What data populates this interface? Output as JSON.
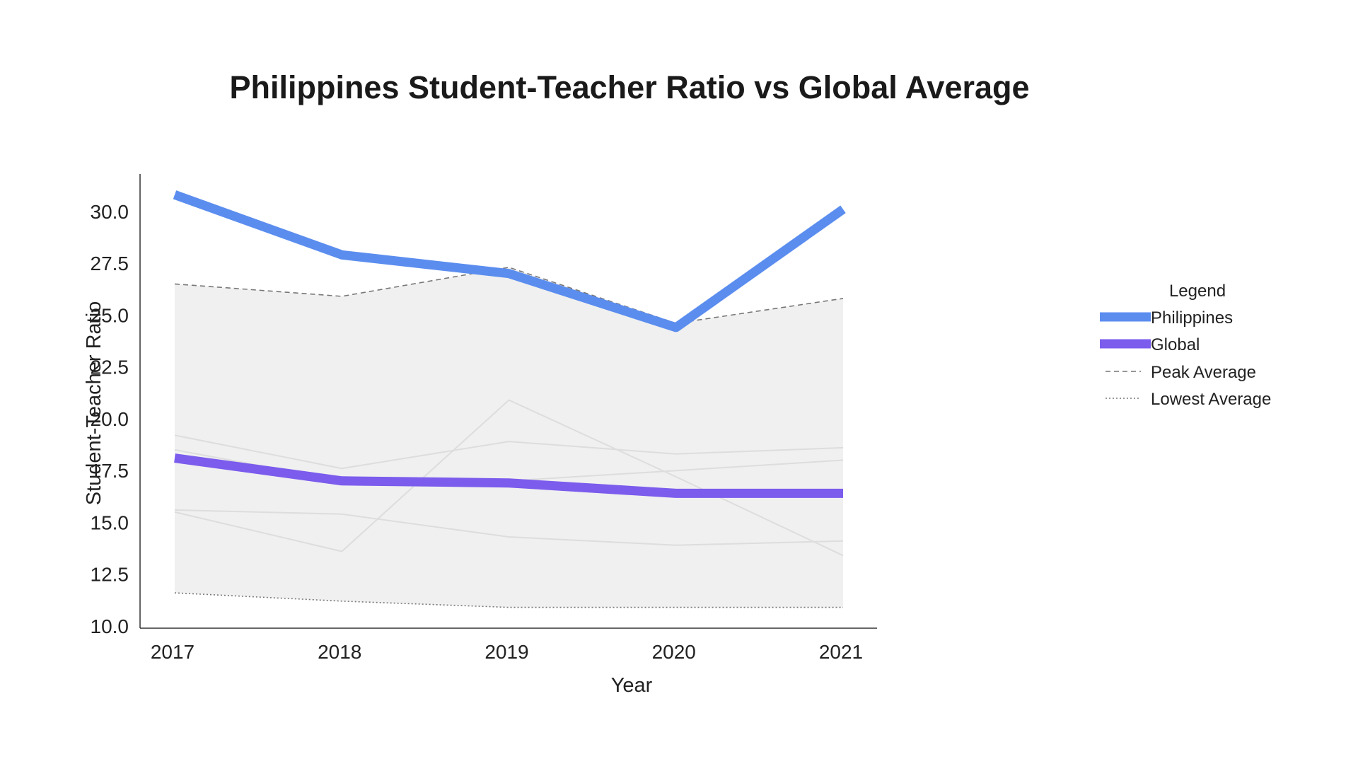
{
  "chart_data": {
    "type": "line",
    "title": "Philippines Student-Teacher Ratio vs Global Average",
    "xlabel": "Year",
    "ylabel": "Student-Teacher Ratio",
    "x": [
      "2017",
      "2018",
      "2019",
      "2020",
      "2021"
    ],
    "y_ticks": [
      "10.0",
      "12.5",
      "15.0",
      "17.5",
      "20.0",
      "22.5",
      "25.0",
      "27.5",
      "30.0"
    ],
    "ylim": [
      10.0,
      31.8
    ],
    "legend": {
      "title": "Legend",
      "placement": "right",
      "entries": [
        "Philippines",
        "Global",
        "Peak Average",
        "Lowest Average"
      ]
    },
    "series": [
      {
        "name": "Philippines",
        "values": [
          30.8,
          27.9,
          27.0,
          24.4,
          30.1
        ],
        "color": "#5b8def",
        "style": "solid-thick"
      },
      {
        "name": "Global",
        "values": [
          18.1,
          17.0,
          16.9,
          16.4,
          16.4
        ],
        "color": "#7b5ced",
        "style": "solid-thick"
      },
      {
        "name": "Peak Average",
        "values": [
          26.5,
          25.9,
          27.3,
          24.6,
          25.8
        ],
        "color": "#777777",
        "style": "dashed"
      },
      {
        "name": "Lowest Average",
        "values": [
          11.6,
          11.2,
          10.9,
          10.9,
          10.9
        ],
        "color": "#777777",
        "style": "dotted"
      }
    ],
    "background_series": [
      {
        "values": [
          19.2,
          17.6,
          18.9,
          18.3,
          18.6
        ]
      },
      {
        "values": [
          18.5,
          17.0,
          17.0,
          17.5,
          18.0
        ]
      },
      {
        "values": [
          15.6,
          15.4,
          14.3,
          13.9,
          14.1
        ]
      },
      {
        "values": [
          15.5,
          13.6,
          20.9,
          17.2,
          13.4
        ]
      }
    ],
    "band": {
      "from": "Lowest Average",
      "to": "Peak Average",
      "color": "#f0f0f0"
    },
    "grid": false
  }
}
